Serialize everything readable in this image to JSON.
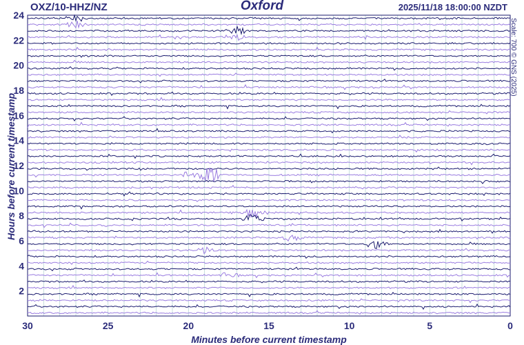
{
  "station": "OXZ/10-HHZ/NZ",
  "location": "Oxford",
  "timestamp": "2025/11/18 18:00:00 NZDT",
  "scale_note": "Scale: 700 © GNS (2025)",
  "chart_data": {
    "type": "line",
    "title": "Oxford",
    "xlabel": "Minutes before current timestamp",
    "ylabel": "Hours before current timestamp",
    "xlim": [
      30,
      0
    ],
    "ylim": [
      0,
      24
    ],
    "x_ticks": [
      30,
      25,
      20,
      15,
      10,
      5,
      0
    ],
    "y_ticks": [
      2,
      4,
      6,
      8,
      10,
      12,
      14,
      16,
      18,
      20,
      22,
      24
    ],
    "trace_count": 48,
    "trace_colors": [
      "#1a1a6e",
      "#9a7ce0"
    ],
    "events": [
      {
        "hour": 23.5,
        "minute": 27,
        "amp": 5
      },
      {
        "hour": 22.5,
        "minute": 17,
        "amp": 6
      },
      {
        "hour": 11.2,
        "minute": 18.7,
        "amp": 18
      },
      {
        "hour": 11.2,
        "minute": 20,
        "amp": 5
      },
      {
        "hour": 8.0,
        "minute": 16,
        "amp": 7
      },
      {
        "hour": 6.2,
        "minute": 13.5,
        "amp": 6
      },
      {
        "hour": 5.8,
        "minute": 8.3,
        "amp": 9
      },
      {
        "hour": 5.3,
        "minute": 19,
        "amp": 5
      },
      {
        "hour": 3.1,
        "minute": 17.5,
        "amp": 4
      }
    ]
  }
}
